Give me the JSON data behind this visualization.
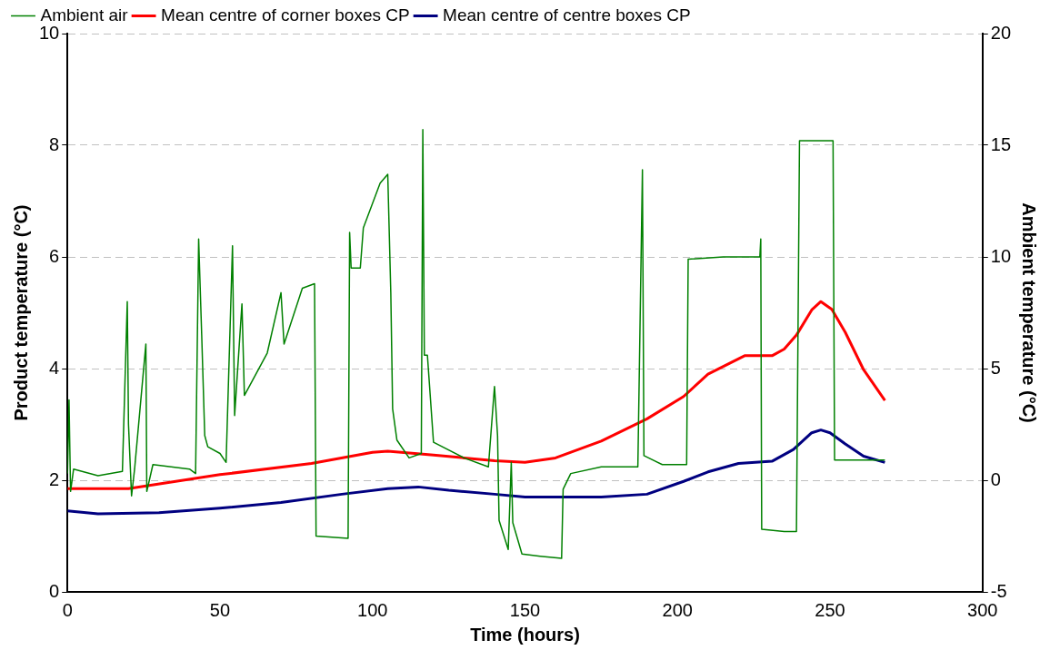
{
  "chart_data": {
    "type": "line",
    "xlabel": "Time (hours)",
    "ylabel": "Product temperature (°C)",
    "y2label": "Ambient temperature (°C)",
    "xlim": [
      0,
      300
    ],
    "xticks": [
      0,
      50,
      100,
      150,
      200,
      250,
      300
    ],
    "ylim": [
      0,
      10
    ],
    "yticks": [
      0,
      2,
      4,
      6,
      8,
      10
    ],
    "y2lim": [
      -5,
      20
    ],
    "y2ticks": [
      -5,
      0,
      5,
      10,
      15,
      20
    ],
    "grid": "y",
    "legend": "top",
    "marker": "none",
    "line_style": "solid",
    "series": [
      {
        "name": "Mean centre of corner boxes CP",
        "color": "#ff0000",
        "x": [
          0,
          20,
          50,
          80,
          100,
          105,
          120,
          140,
          150,
          160,
          175,
          190,
          202,
          210,
          222,
          231,
          235,
          239,
          244,
          247,
          250.6,
          255,
          261,
          268
        ],
        "values": [
          1.85,
          1.85,
          2.1,
          2.3,
          2.5,
          2.52,
          2.45,
          2.35,
          2.32,
          2.4,
          2.7,
          3.1,
          3.5,
          3.9,
          4.23,
          4.23,
          4.35,
          4.6,
          5.05,
          5.2,
          5.06,
          4.65,
          3.98,
          3.43
        ]
      },
      {
        "name": "Mean centre of centre boxes CP",
        "color": "#000080",
        "x": [
          0,
          10,
          30,
          50,
          70,
          90,
          105,
          115,
          125,
          140,
          150,
          175,
          190,
          202,
          210,
          220,
          231,
          238,
          244,
          247,
          250,
          255,
          261,
          268
        ],
        "values": [
          1.45,
          1.4,
          1.42,
          1.5,
          1.6,
          1.75,
          1.85,
          1.88,
          1.82,
          1.75,
          1.7,
          1.7,
          1.75,
          1.98,
          2.15,
          2.3,
          2.34,
          2.55,
          2.85,
          2.9,
          2.85,
          2.65,
          2.43,
          2.32
        ]
      },
      {
        "name": "Ambient air",
        "color": "#008000",
        "axis": "y2",
        "x": [
          0,
          0.5,
          1,
          2,
          10,
          18,
          19.6,
          20,
          21,
          22,
          25.7,
          26,
          28,
          40,
          42,
          43,
          44,
          45,
          46,
          50,
          52,
          54.1,
          54.8,
          57.2,
          58,
          65.5,
          70,
          71,
          77,
          81,
          81.5,
          92,
          92.5,
          93,
          96,
          97,
          102.5,
          105,
          106,
          106.6,
          108,
          112,
          116,
          116.5,
          117,
          118,
          120,
          130,
          138,
          140,
          141,
          141.5,
          144.5,
          145.5,
          146,
          149,
          155,
          162,
          162.5,
          165,
          175,
          187,
          188.5,
          189,
          195,
          203,
          203.5,
          215,
          227,
          227.3,
          227.6,
          235,
          239,
          240,
          245,
          251,
          251.5,
          260,
          268
        ],
        "values": [
          0.3,
          3.6,
          -0.5,
          0.5,
          0.2,
          0.4,
          8.0,
          2.5,
          -0.7,
          0.5,
          6.1,
          -0.5,
          0.7,
          0.5,
          0.3,
          10.8,
          6.5,
          2.0,
          1.5,
          1.2,
          0.8,
          10.5,
          2.9,
          7.9,
          3.8,
          5.7,
          8.4,
          6.1,
          8.6,
          8.8,
          -2.5,
          -2.6,
          11.1,
          9.5,
          9.5,
          11.3,
          13.3,
          13.7,
          8.4,
          3.2,
          1.8,
          1.0,
          1.2,
          15.7,
          5.6,
          5.6,
          1.7,
          1.0,
          0.6,
          4.2,
          2.0,
          -1.8,
          -3.1,
          0.8,
          -1.9,
          -3.3,
          -3.4,
          -3.5,
          -0.4,
          0.3,
          0.6,
          0.6,
          13.9,
          1.1,
          0.7,
          0.7,
          9.9,
          10.0,
          10.0,
          10.8,
          -2.2,
          -2.3,
          -2.3,
          15.2,
          15.2,
          15.2,
          0.9,
          0.9,
          0.9
        ]
      }
    ]
  }
}
